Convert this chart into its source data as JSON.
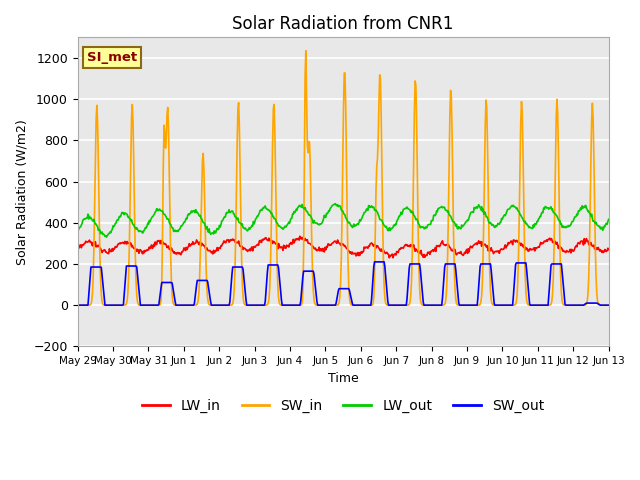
{
  "title": "Solar Radiation from CNR1",
  "xlabel": "Time",
  "ylabel": "Solar Radiation (W/m2)",
  "ylim": [
    -200,
    1300
  ],
  "yticks": [
    -200,
    0,
    200,
    400,
    600,
    800,
    1000,
    1200
  ],
  "legend_label": "SI_met",
  "series": [
    "LW_in",
    "SW_in",
    "LW_out",
    "SW_out"
  ],
  "colors": [
    "#ff0000",
    "#ffa500",
    "#00cc00",
    "#0000ff"
  ],
  "n_days": 15,
  "day_labels": [
    "May 29",
    "May 30",
    "May 31",
    "Jun 1",
    "Jun 2",
    "Jun 3",
    "Jun 4",
    "Jun 5",
    "Jun 6",
    "Jun 7",
    "Jun 8",
    "Jun 9",
    "Jun 10",
    "Jun 11",
    "Jun 12",
    "Jun 13"
  ],
  "background_color": "#ffffff",
  "plot_bg_color": "#e8e8e8",
  "grid_color": "#ffffff",
  "title_fontsize": 12,
  "axis_fontsize": 9,
  "legend_fontsize": 10,
  "sw_in_peaks": [
    970,
    975,
    960,
    740,
    990,
    985,
    800,
    1150,
    1130,
    1100,
    1050,
    1000,
    990,
    1000,
    980
  ],
  "sw_in_peak2": [
    0,
    0,
    730,
    0,
    0,
    0,
    1130,
    0,
    470,
    0,
    0,
    0,
    0,
    0,
    0
  ],
  "sw_out_peaks": [
    185,
    190,
    110,
    120,
    185,
    195,
    165,
    80,
    210,
    200,
    200,
    200,
    205,
    200,
    10
  ],
  "lw_in_base": [
    280,
    285,
    280,
    275,
    290,
    295,
    305,
    290,
    270,
    265,
    270,
    275,
    285,
    295,
    285
  ],
  "lw_out_base": [
    375,
    390,
    410,
    415,
    395,
    420,
    425,
    445,
    430,
    415,
    425,
    425,
    435,
    425,
    425
  ]
}
